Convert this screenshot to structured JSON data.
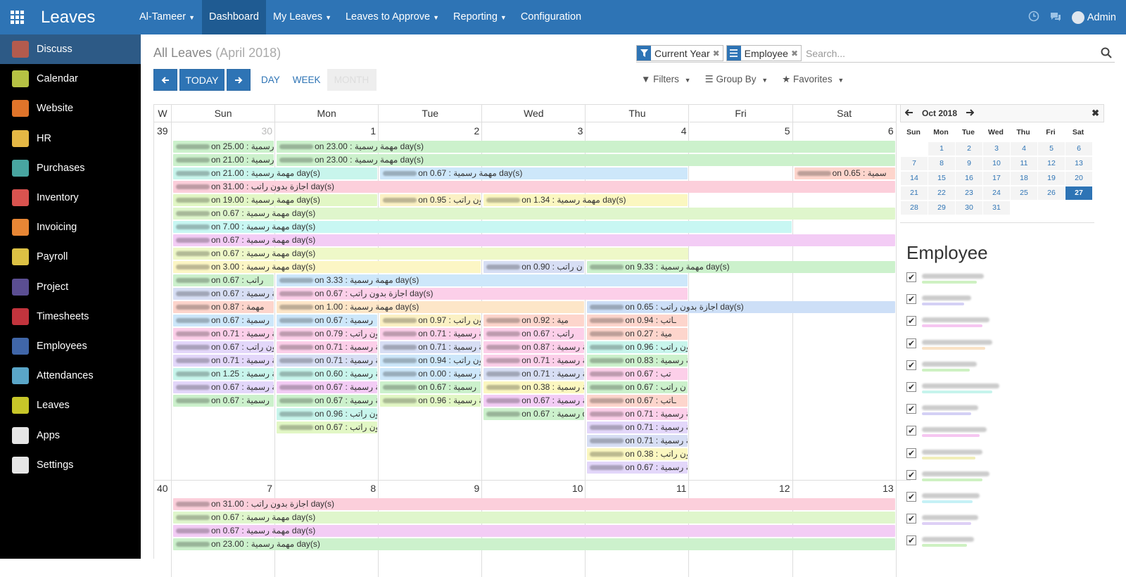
{
  "app": {
    "name": "Leaves"
  },
  "menu": [
    {
      "label": "Al-Tameer",
      "dropdown": true
    },
    {
      "label": "Dashboard",
      "dropdown": false,
      "active": true
    },
    {
      "label": "My Leaves",
      "dropdown": true
    },
    {
      "label": "Leaves to Approve",
      "dropdown": true
    },
    {
      "label": "Reporting",
      "dropdown": true
    },
    {
      "label": "Configuration",
      "dropdown": false
    }
  ],
  "user": {
    "name": "Admin"
  },
  "sidebar": [
    {
      "label": "Discuss",
      "color": "#b35b4e",
      "active": true
    },
    {
      "label": "Calendar",
      "color": "#b6c244"
    },
    {
      "label": "Website",
      "color": "#e0742a"
    },
    {
      "label": "HR",
      "color": "#e5b845"
    },
    {
      "label": "Purchases",
      "color": "#48a5a0"
    },
    {
      "label": "Inventory",
      "color": "#d9534f"
    },
    {
      "label": "Invoicing",
      "color": "#e78635"
    },
    {
      "label": "Payroll",
      "color": "#dcc144"
    },
    {
      "label": "Project",
      "color": "#5b4e92"
    },
    {
      "label": "Timesheets",
      "color": "#c2343d"
    },
    {
      "label": "Employees",
      "color": "#4066a8"
    },
    {
      "label": "Attendances",
      "color": "#5aa6c8"
    },
    {
      "label": "Leaves",
      "color": "#c7c629"
    },
    {
      "label": "Apps",
      "color": "#e6e6e6"
    },
    {
      "label": "Settings",
      "color": "#e6e6e6"
    }
  ],
  "page": {
    "title": "All Leaves",
    "subtitle": "(April 2018)"
  },
  "buttons": {
    "today": "TODAY",
    "day": "DAY",
    "week": "WEEK",
    "month": "MONTH"
  },
  "search": {
    "facets": [
      "Current Year",
      "Employee"
    ],
    "placeholder": "Search..."
  },
  "filters": {
    "filters": "Filters",
    "group_by": "Group By",
    "favorites": "Favorites"
  },
  "calendar": {
    "week_header": "W",
    "days": [
      "Sun",
      "Mon",
      "Tue",
      "Wed",
      "Thu",
      "Fri",
      "Sat"
    ],
    "weeks": [
      {
        "num": "39",
        "dates": [
          "30",
          "1",
          "2",
          "3",
          "4",
          "5",
          "6"
        ]
      },
      {
        "num": "40",
        "dates": [
          "7",
          "8",
          "9",
          "10",
          "11",
          "12",
          "13"
        ]
      }
    ]
  },
  "events": [
    {
      "w": 0,
      "r": 0,
      "c": 0,
      "s": 1,
      "t": "on 25.00 : ة رسمية",
      "col": "#ccf1cc"
    },
    {
      "w": 0,
      "r": 0,
      "c": 1,
      "s": 6,
      "t": "on 23.00 : مهمة رسمية day(s)",
      "col": "#ccf1cc"
    },
    {
      "w": 0,
      "r": 1,
      "c": 0,
      "s": 1,
      "t": "on 21.00 : مهمة رسمية",
      "col": "#ccf1cc"
    },
    {
      "w": 0,
      "r": 1,
      "c": 1,
      "s": 6,
      "t": "on 23.00 : مهمة رسمية day(s)",
      "col": "#ccf1cc"
    },
    {
      "w": 0,
      "r": 2,
      "c": 0,
      "s": 2,
      "t": "on 21.00 : مهمة رسمية day(s)",
      "col": "#c8f5ec"
    },
    {
      "w": 0,
      "r": 2,
      "c": 2,
      "s": 3,
      "t": "on 0.67 : مهمة رسمية day(s)",
      "col": "#cde7fa"
    },
    {
      "w": 0,
      "r": 2,
      "c": 6,
      "s": 1,
      "t": "on 0.65 : سمية",
      "col": "#fdd5cc"
    },
    {
      "w": 0,
      "r": 3,
      "c": 0,
      "s": 7,
      "t": "on 31.00 : اجازة بدون راتب day(s)",
      "col": "#fccfdb"
    },
    {
      "w": 0,
      "r": 4,
      "c": 0,
      "s": 2,
      "t": "on 19.00 : مهمة رسمية day(s)",
      "col": "#e2f7c5"
    },
    {
      "w": 0,
      "r": 4,
      "c": 2,
      "s": 1,
      "t": "on 0.95 : بدون راتب",
      "col": "#fbf1c4"
    },
    {
      "w": 0,
      "r": 4,
      "c": 3,
      "s": 2,
      "t": "on 1.34 : مهمة رسمية day(s)",
      "col": "#fbf7c0"
    },
    {
      "w": 0,
      "r": 5,
      "c": 0,
      "s": 7,
      "t": "on 0.67 : مهمة رسمية day(s)",
      "col": "#dff6cc"
    },
    {
      "w": 0,
      "r": 6,
      "c": 0,
      "s": 6,
      "t": "on 7.00 : مهمة رسمية day(s)",
      "col": "#c8f7f3"
    },
    {
      "w": 0,
      "r": 7,
      "c": 0,
      "s": 7,
      "t": "on 0.67 : مهمة رسمية day(s)",
      "col": "#f3ccf5"
    },
    {
      "w": 0,
      "r": 8,
      "c": 0,
      "s": 5,
      "t": "on 0.67 : مهمة رسمية day(s)",
      "col": "#eef8c8"
    },
    {
      "w": 0,
      "r": 9,
      "c": 0,
      "s": 3,
      "t": "on 3.00 : مهمة رسمية day(s)",
      "col": "#fcf6c5"
    },
    {
      "w": 0,
      "r": 9,
      "c": 3,
      "s": 1,
      "t": "on 0.90 : ن راتب",
      "col": "#d7def4"
    },
    {
      "w": 0,
      "r": 9,
      "c": 4,
      "s": 3,
      "t": "on 9.33 : مهمة رسمية day(s)",
      "col": "#ccf1cc"
    },
    {
      "w": 0,
      "r": 10,
      "c": 0,
      "s": 1,
      "t": "on 0.67 : راتب",
      "col": "#ccf1cc"
    },
    {
      "w": 0,
      "r": 10,
      "c": 1,
      "s": 4,
      "t": "on 3.33 : مهمة رسمية day(s)",
      "col": "#cde7fa"
    },
    {
      "w": 0,
      "r": 11,
      "c": 0,
      "s": 1,
      "t": "on 0.67 : مة رسمية",
      "col": "#d7def4"
    },
    {
      "w": 0,
      "r": 11,
      "c": 1,
      "s": 4,
      "t": "on 0.67 : اجازة بدون راتب day(s)",
      "col": "#fccfe9"
    },
    {
      "w": 0,
      "r": 12,
      "c": 0,
      "s": 1,
      "t": "on 0.87 : مهمة",
      "col": "#fdd5cc"
    },
    {
      "w": 0,
      "r": 12,
      "c": 1,
      "s": 3,
      "t": "on 1.00 : مهمة رسمية day(s)",
      "col": "#fde6c8"
    },
    {
      "w": 0,
      "r": 12,
      "c": 4,
      "s": 3,
      "t": "on 0.65 : اجازة بدون راتب day(s)",
      "col": "#cddff7"
    },
    {
      "w": 0,
      "r": 13,
      "c": 0,
      "s": 1,
      "t": "on 0.67 : رسمية",
      "col": "#cde7fa"
    },
    {
      "w": 0,
      "r": 13,
      "c": 1,
      "s": 1,
      "t": "on 0.67 : رسمية",
      "col": "#cde7fa"
    },
    {
      "w": 0,
      "r": 13,
      "c": 2,
      "s": 1,
      "t": "on 0.97 : بدون راتب",
      "col": "#fbf1c4"
    },
    {
      "w": 0,
      "r": 13,
      "c": 3,
      "s": 1,
      "t": "on 0.92 : مية",
      "col": "#fdd5cc"
    },
    {
      "w": 0,
      "r": 13,
      "c": 4,
      "s": 1,
      "t": "on 0.94 : ـاتب",
      "col": "#fdd5cc"
    },
    {
      "w": 0,
      "r": 14,
      "c": 0,
      "s": 1,
      "t": "on 0.71 : مهمة رسمية",
      "col": "#fccfe9"
    },
    {
      "w": 0,
      "r": 14,
      "c": 1,
      "s": 1,
      "t": "on 0.79 : بدون راتب",
      "col": "#fccfe9"
    },
    {
      "w": 0,
      "r": 14,
      "c": 2,
      "s": 1,
      "t": "on 0.71 : مهمة رسمية",
      "col": "#fccfe9"
    },
    {
      "w": 0,
      "r": 14,
      "c": 3,
      "s": 1,
      "t": "on 0.67 : راتب",
      "col": "#fccfe9"
    },
    {
      "w": 0,
      "r": 14,
      "c": 4,
      "s": 1,
      "t": "on 0.27 : مية",
      "col": "#fdd5cc"
    },
    {
      "w": 0,
      "r": 15,
      "c": 0,
      "s": 1,
      "t": "on 0.67 : بدون راتب",
      "col": "#e3d7fa"
    },
    {
      "w": 0,
      "r": 15,
      "c": 1,
      "s": 1,
      "t": "on 0.71 : مهمة رسمية",
      "col": "#fccfe9"
    },
    {
      "w": 0,
      "r": 15,
      "c": 2,
      "s": 1,
      "t": "on 0.71 : مهمة رسمية",
      "col": "#d7def4"
    },
    {
      "w": 0,
      "r": 15,
      "c": 3,
      "s": 1,
      "t": "on 0.87 : مهمة رسمية",
      "col": "#fccfe9"
    },
    {
      "w": 0,
      "r": 15,
      "c": 4,
      "s": 1,
      "t": "on 0.96 : بدون راتب",
      "col": "#c8f5ec"
    },
    {
      "w": 0,
      "r": 16,
      "c": 0,
      "s": 1,
      "t": "on 0.71 : مهمة رسمية",
      "col": "#e3d7fa"
    },
    {
      "w": 0,
      "r": 16,
      "c": 1,
      "s": 1,
      "t": "on 0.71 : مهمة رسمية",
      "col": "#d7def4"
    },
    {
      "w": 0,
      "r": 16,
      "c": 2,
      "s": 1,
      "t": "on 0.94 : دون راتب",
      "col": "#cde7fa"
    },
    {
      "w": 0,
      "r": 16,
      "c": 3,
      "s": 1,
      "t": "on 0.71 : مهمة رسمية",
      "col": "#fccfe9"
    },
    {
      "w": 0,
      "r": 16,
      "c": 4,
      "s": 1,
      "t": "on 0.83 : مهمة رسمية",
      "col": "#ccf1cc"
    },
    {
      "w": 0,
      "r": 17,
      "c": 0,
      "s": 1,
      "t": "on 1.25 : مة رسمية",
      "col": "#c8f5ec"
    },
    {
      "w": 0,
      "r": 17,
      "c": 1,
      "s": 1,
      "t": "on 0.60 : مهمة رسمية",
      "col": "#c8f5ec"
    },
    {
      "w": 0,
      "r": 17,
      "c": 2,
      "s": 1,
      "t": "on 0.00 : مهمة رسمية",
      "col": "#cde7fa"
    },
    {
      "w": 0,
      "r": 17,
      "c": 3,
      "s": 1,
      "t": "on 0.71 : مهمة رسمية",
      "col": "#d7def4"
    },
    {
      "w": 0,
      "r": 17,
      "c": 4,
      "s": 1,
      "t": "on 0.67 : تب",
      "col": "#fccfe9"
    },
    {
      "w": 0,
      "r": 18,
      "c": 0,
      "s": 1,
      "t": "on 0.67 : مهمة رسمية",
      "col": "#e3d7fa"
    },
    {
      "w": 0,
      "r": 18,
      "c": 1,
      "s": 1,
      "t": "on 0.67 : مهمة رسمية",
      "col": "#f3ccf5"
    },
    {
      "w": 0,
      "r": 18,
      "c": 2,
      "s": 1,
      "t": "on 0.67 : رسمية",
      "col": "#ccf1cc"
    },
    {
      "w": 0,
      "r": 18,
      "c": 3,
      "s": 1,
      "t": "on 0.38 : مة رسمية",
      "col": "#fbf7c0"
    },
    {
      "w": 0,
      "r": 18,
      "c": 4,
      "s": 1,
      "t": "on 0.67 : ن راتب",
      "col": "#ccf1cc"
    },
    {
      "w": 0,
      "r": 19,
      "c": 0,
      "s": 1,
      "t": "on 0.67 : رسمية",
      "col": "#ccf1cc"
    },
    {
      "w": 0,
      "r": 19,
      "c": 1,
      "s": 1,
      "t": "on 0.67 : مهمة رسمية",
      "col": "#ccf1cc"
    },
    {
      "w": 0,
      "r": 19,
      "c": 2,
      "s": 1,
      "t": "on 0.96 : مهمة رسمية",
      "col": "#e2f7c5"
    },
    {
      "w": 0,
      "r": 19,
      "c": 3,
      "s": 1,
      "t": "on 0.67 : مهمة رسمية",
      "col": "#f3ccf5"
    },
    {
      "w": 0,
      "r": 19,
      "c": 4,
      "s": 1,
      "t": "on 0.67 : ـاتب",
      "col": "#fdd5cc"
    },
    {
      "w": 0,
      "r": 20,
      "c": 1,
      "s": 1,
      "t": "on 0.96 : بدون راتب",
      "col": "#c8f5ec"
    },
    {
      "w": 0,
      "r": 20,
      "c": 3,
      "s": 1,
      "t": "on 0.67 : رسمية day(s)",
      "col": "#ccf1cc"
    },
    {
      "w": 0,
      "r": 20,
      "c": 4,
      "s": 1,
      "t": "on 0.71 : مهمة رسمية",
      "col": "#fccfe9"
    },
    {
      "w": 0,
      "r": 21,
      "c": 1,
      "s": 1,
      "t": "on 0.67 : بدون راتب",
      "col": "#e2f7c5"
    },
    {
      "w": 0,
      "r": 21,
      "c": 4,
      "s": 1,
      "t": "on 0.71 : مهمة رسمية",
      "col": "#e3d7fa"
    },
    {
      "w": 0,
      "r": 22,
      "c": 4,
      "s": 1,
      "t": "on 0.71 : مهمة رسمية",
      "col": "#d7def4"
    },
    {
      "w": 0,
      "r": 23,
      "c": 4,
      "s": 1,
      "t": "on 0.38 : دون راتب",
      "col": "#fbf7c0"
    },
    {
      "w": 0,
      "r": 24,
      "c": 4,
      "s": 1,
      "t": "on 0.67 : مهمة رسمية",
      "col": "#e3d7fa"
    },
    {
      "w": 1,
      "r": 0,
      "c": 0,
      "s": 7,
      "t": "on 31.00 : اجازة بدون راتب day(s)",
      "col": "#fccfdb"
    },
    {
      "w": 1,
      "r": 1,
      "c": 0,
      "s": 7,
      "t": "on 0.67 : مهمة رسمية day(s)",
      "col": "#dff6cc"
    },
    {
      "w": 1,
      "r": 2,
      "c": 0,
      "s": 7,
      "t": "on 0.67 : مهمة رسمية day(s)",
      "col": "#f3ccf5"
    },
    {
      "w": 1,
      "r": 3,
      "c": 0,
      "s": 7,
      "t": "on 23.00 : مهمة رسمية day(s)",
      "col": "#ccf1cc"
    }
  ],
  "mini_calendar": {
    "title": "Oct 2018",
    "days": [
      "Sun",
      "Mon",
      "Tue",
      "Wed",
      "Thu",
      "Fri",
      "Sat"
    ],
    "weeks": [
      [
        "",
        "1",
        "2",
        "3",
        "4",
        "5",
        "6"
      ],
      [
        "7",
        "8",
        "9",
        "10",
        "11",
        "12",
        "13"
      ],
      [
        "14",
        "15",
        "16",
        "17",
        "18",
        "19",
        "20"
      ],
      [
        "21",
        "22",
        "23",
        "24",
        "25",
        "26",
        "27"
      ],
      [
        "28",
        "29",
        "30",
        "31",
        "",
        "",
        ""
      ]
    ],
    "selected": "27"
  },
  "employee_filter": {
    "title": "Employee",
    "items": [
      {
        "color": "#aee89a",
        "checked": true
      },
      {
        "color": "#b8b0ee",
        "checked": true
      },
      {
        "color": "#f0a0e8",
        "checked": true
      },
      {
        "color": "#f5cfa0",
        "checked": true
      },
      {
        "color": "#aee89a",
        "checked": true
      },
      {
        "color": "#a0ece0",
        "checked": true
      },
      {
        "color": "#b8b0ee",
        "checked": true
      },
      {
        "color": "#f0a0e8",
        "checked": true
      },
      {
        "color": "#e8e28a",
        "checked": true
      },
      {
        "color": "#aee89a",
        "checked": true
      },
      {
        "color": "#a0e8f0",
        "checked": true
      },
      {
        "color": "#c8b0f0",
        "checked": true
      },
      {
        "color": "#aee89a",
        "checked": true
      }
    ]
  }
}
